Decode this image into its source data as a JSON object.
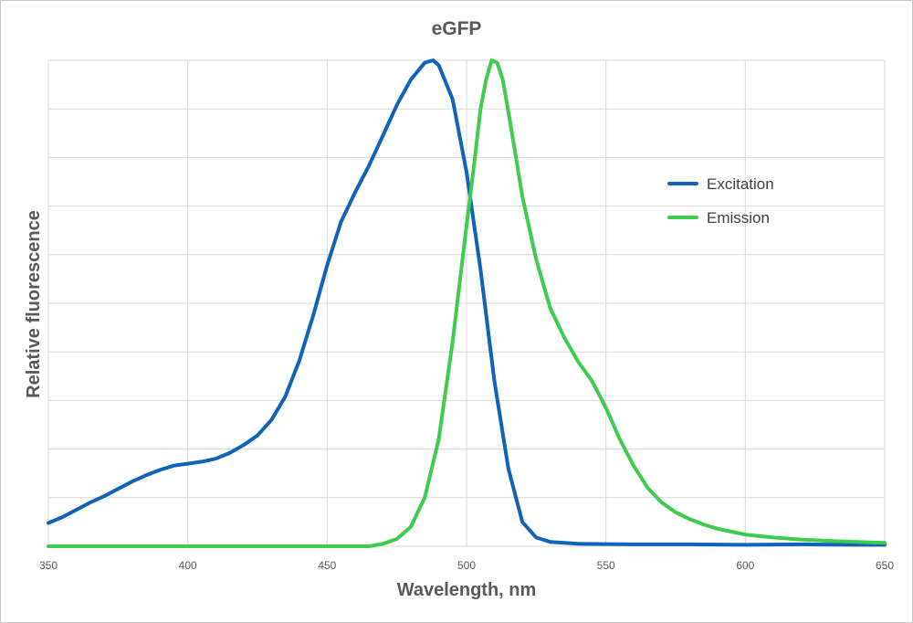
{
  "chart_data": {
    "type": "line",
    "title": "eGFP",
    "xlabel": "Wavelength, nm",
    "ylabel": "Relative fluorescence",
    "xlim": [
      350,
      650
    ],
    "ylim": [
      0,
      1
    ],
    "x_ticks": [
      350,
      400,
      450,
      500,
      550,
      600,
      650
    ],
    "y_tick_labels_shown": false,
    "grid": true,
    "legend_position": "right",
    "series": [
      {
        "name": "Excitation",
        "color": "#0f63b8",
        "points": [
          [
            350,
            0.048
          ],
          [
            355,
            0.06
          ],
          [
            360,
            0.075
          ],
          [
            365,
            0.09
          ],
          [
            370,
            0.103
          ],
          [
            375,
            0.118
          ],
          [
            380,
            0.133
          ],
          [
            385,
            0.146
          ],
          [
            390,
            0.157
          ],
          [
            395,
            0.166
          ],
          [
            400,
            0.17
          ],
          [
            405,
            0.174
          ],
          [
            410,
            0.18
          ],
          [
            415,
            0.192
          ],
          [
            420,
            0.208
          ],
          [
            425,
            0.228
          ],
          [
            430,
            0.26
          ],
          [
            435,
            0.308
          ],
          [
            440,
            0.382
          ],
          [
            445,
            0.475
          ],
          [
            450,
            0.578
          ],
          [
            455,
            0.668
          ],
          [
            460,
            0.728
          ],
          [
            465,
            0.783
          ],
          [
            470,
            0.845
          ],
          [
            475,
            0.908
          ],
          [
            480,
            0.96
          ],
          [
            485,
            0.995
          ],
          [
            488,
            1.0
          ],
          [
            490,
            0.99
          ],
          [
            495,
            0.92
          ],
          [
            500,
            0.77
          ],
          [
            505,
            0.57
          ],
          [
            510,
            0.34
          ],
          [
            515,
            0.16
          ],
          [
            520,
            0.05
          ],
          [
            525,
            0.018
          ],
          [
            530,
            0.009
          ],
          [
            540,
            0.005
          ],
          [
            560,
            0.004
          ],
          [
            580,
            0.004
          ],
          [
            600,
            0.003
          ],
          [
            620,
            0.004
          ],
          [
            640,
            0.003
          ],
          [
            650,
            0.003
          ]
        ]
      },
      {
        "name": "Emission",
        "color": "#3dcc4d",
        "points": [
          [
            350,
            0.0
          ],
          [
            400,
            0.0
          ],
          [
            450,
            0.0
          ],
          [
            465,
            0.0
          ],
          [
            470,
            0.005
          ],
          [
            475,
            0.015
          ],
          [
            480,
            0.04
          ],
          [
            485,
            0.1
          ],
          [
            490,
            0.22
          ],
          [
            495,
            0.42
          ],
          [
            500,
            0.66
          ],
          [
            503,
            0.8
          ],
          [
            505,
            0.9
          ],
          [
            507,
            0.96
          ],
          [
            509,
            1.0
          ],
          [
            511,
            0.995
          ],
          [
            513,
            0.96
          ],
          [
            516,
            0.86
          ],
          [
            520,
            0.72
          ],
          [
            525,
            0.59
          ],
          [
            530,
            0.49
          ],
          [
            535,
            0.43
          ],
          [
            540,
            0.38
          ],
          [
            545,
            0.34
          ],
          [
            550,
            0.285
          ],
          [
            555,
            0.22
          ],
          [
            560,
            0.165
          ],
          [
            565,
            0.12
          ],
          [
            570,
            0.09
          ],
          [
            575,
            0.07
          ],
          [
            580,
            0.056
          ],
          [
            585,
            0.045
          ],
          [
            590,
            0.036
          ],
          [
            595,
            0.03
          ],
          [
            600,
            0.024
          ],
          [
            610,
            0.018
          ],
          [
            620,
            0.014
          ],
          [
            630,
            0.011
          ],
          [
            640,
            0.009
          ],
          [
            650,
            0.007
          ]
        ]
      }
    ]
  }
}
